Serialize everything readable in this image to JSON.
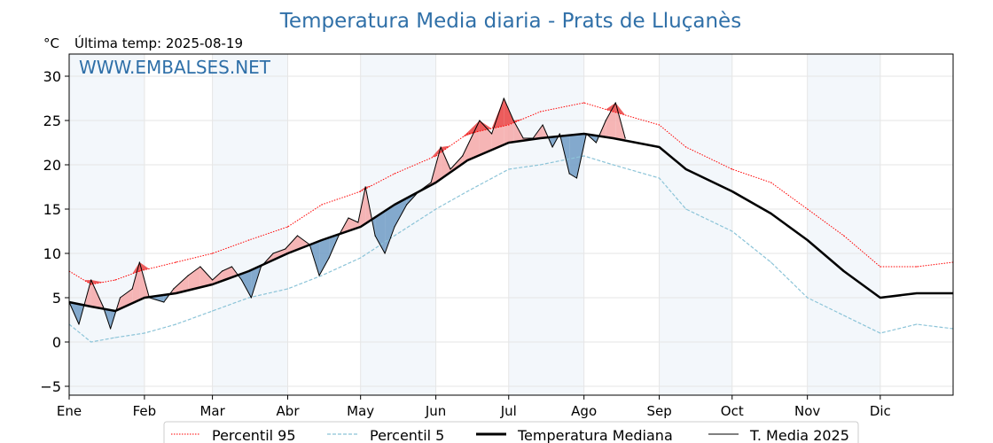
{
  "chart_data": {
    "type": "line",
    "title": "Temperatura Media diaria - Prats de Lluçanès",
    "unit": "°C",
    "last_temp_label": "Última temp: 2025-08-19",
    "watermark": "WWW.EMBALSES.NET",
    "xlim": [
      1,
      365
    ],
    "ylim": [
      -6,
      32.5
    ],
    "yticks": [
      -5,
      0,
      5,
      10,
      15,
      20,
      25,
      30
    ],
    "grid": true,
    "legend_position": "bottom-center",
    "months": [
      {
        "label": "Ene",
        "day": 1
      },
      {
        "label": "Feb",
        "day": 32
      },
      {
        "label": "Mar",
        "day": 60
      },
      {
        "label": "Abr",
        "day": 91
      },
      {
        "label": "May",
        "day": 121
      },
      {
        "label": "Jun",
        "day": 152
      },
      {
        "label": "Jul",
        "day": 182
      },
      {
        "label": "Ago",
        "day": 213
      },
      {
        "label": "Sep",
        "day": 244
      },
      {
        "label": "Oct",
        "day": 274
      },
      {
        "label": "Nov",
        "day": 305
      },
      {
        "label": "Dic",
        "day": 335
      }
    ],
    "shaded_months_days": [
      [
        1,
        32
      ],
      [
        60,
        91
      ],
      [
        121,
        152
      ],
      [
        182,
        213
      ],
      [
        244,
        274
      ],
      [
        305,
        335
      ]
    ],
    "series": [
      {
        "name": "Percentil 95",
        "color": "#ff0000",
        "style": "dotted",
        "points": [
          [
            1,
            8
          ],
          [
            10,
            6.5
          ],
          [
            20,
            7
          ],
          [
            30,
            8
          ],
          [
            45,
            9
          ],
          [
            60,
            10
          ],
          [
            75,
            11.5
          ],
          [
            91,
            13
          ],
          [
            105,
            15.5
          ],
          [
            121,
            17
          ],
          [
            135,
            19
          ],
          [
            152,
            21
          ],
          [
            165,
            23.5
          ],
          [
            182,
            24.5
          ],
          [
            195,
            26
          ],
          [
            213,
            27
          ],
          [
            225,
            26
          ],
          [
            244,
            24.5
          ],
          [
            255,
            22
          ],
          [
            274,
            19.5
          ],
          [
            290,
            18
          ],
          [
            305,
            15
          ],
          [
            320,
            12
          ],
          [
            335,
            8.5
          ],
          [
            350,
            8.5
          ],
          [
            365,
            9
          ]
        ]
      },
      {
        "name": "Percentil 5",
        "color": "#8cc4d8",
        "style": "dashed",
        "points": [
          [
            1,
            2
          ],
          [
            10,
            0
          ],
          [
            20,
            0.5
          ],
          [
            32,
            1
          ],
          [
            45,
            2
          ],
          [
            60,
            3.5
          ],
          [
            75,
            5
          ],
          [
            91,
            6
          ],
          [
            105,
            7.5
          ],
          [
            121,
            9.5
          ],
          [
            135,
            12
          ],
          [
            152,
            15
          ],
          [
            165,
            17
          ],
          [
            182,
            19.5
          ],
          [
            195,
            20
          ],
          [
            213,
            21
          ],
          [
            225,
            20
          ],
          [
            244,
            18.5
          ],
          [
            255,
            15
          ],
          [
            274,
            12.5
          ],
          [
            290,
            9
          ],
          [
            305,
            5
          ],
          [
            320,
            3
          ],
          [
            335,
            1
          ],
          [
            350,
            2
          ],
          [
            365,
            1.5
          ]
        ]
      },
      {
        "name": "Temperatura Mediana",
        "color": "#000000",
        "style": "thick",
        "points": [
          [
            1,
            4.5
          ],
          [
            10,
            4
          ],
          [
            20,
            3.5
          ],
          [
            32,
            5
          ],
          [
            45,
            5.5
          ],
          [
            60,
            6.5
          ],
          [
            75,
            8
          ],
          [
            91,
            10
          ],
          [
            105,
            11.5
          ],
          [
            121,
            13
          ],
          [
            135,
            15.5
          ],
          [
            152,
            18
          ],
          [
            165,
            20.5
          ],
          [
            182,
            22.5
          ],
          [
            195,
            23
          ],
          [
            213,
            23.5
          ],
          [
            225,
            23
          ],
          [
            244,
            22
          ],
          [
            255,
            19.5
          ],
          [
            274,
            17
          ],
          [
            290,
            14.5
          ],
          [
            305,
            11.5
          ],
          [
            320,
            8
          ],
          [
            335,
            5
          ],
          [
            350,
            5.5
          ],
          [
            365,
            5.5
          ]
        ]
      },
      {
        "name": "T. Media 2025",
        "color": "#000000",
        "style": "thin",
        "points": [
          [
            1,
            4.5
          ],
          [
            5,
            2
          ],
          [
            10,
            7
          ],
          [
            15,
            4
          ],
          [
            18,
            1.5
          ],
          [
            22,
            5
          ],
          [
            27,
            6
          ],
          [
            30,
            9
          ],
          [
            34,
            5
          ],
          [
            40,
            4.5
          ],
          [
            44,
            6
          ],
          [
            50,
            7.5
          ],
          [
            55,
            8.5
          ],
          [
            60,
            7
          ],
          [
            64,
            8
          ],
          [
            68,
            8.5
          ],
          [
            72,
            7
          ],
          [
            76,
            5
          ],
          [
            80,
            8.5
          ],
          [
            85,
            10
          ],
          [
            90,
            10.5
          ],
          [
            95,
            12
          ],
          [
            100,
            11
          ],
          [
            104,
            7.5
          ],
          [
            108,
            9.5
          ],
          [
            112,
            12
          ],
          [
            116,
            14
          ],
          [
            120,
            13.5
          ],
          [
            123,
            17.5
          ],
          [
            127,
            12
          ],
          [
            131,
            10
          ],
          [
            135,
            13
          ],
          [
            140,
            15.5
          ],
          [
            145,
            17
          ],
          [
            150,
            18
          ],
          [
            154,
            22
          ],
          [
            158,
            19.5
          ],
          [
            163,
            21
          ],
          [
            170,
            25
          ],
          [
            175,
            23.5
          ],
          [
            180,
            27.5
          ],
          [
            184,
            25
          ],
          [
            188,
            23
          ],
          [
            192,
            23
          ],
          [
            196,
            24.5
          ],
          [
            200,
            22
          ],
          [
            203,
            23.5
          ],
          [
            207,
            19
          ],
          [
            210,
            18.5
          ],
          [
            214,
            23.5
          ],
          [
            218,
            22.5
          ],
          [
            222,
            25
          ],
          [
            226,
            27
          ],
          [
            230,
            23
          ]
        ]
      }
    ]
  },
  "legend": [
    {
      "label": "Percentil 95",
      "key": "p95"
    },
    {
      "label": "Percentil 5",
      "key": "p5"
    },
    {
      "label": "Temperatura Mediana",
      "key": "median"
    },
    {
      "label": "T. Media 2025",
      "key": "t2025"
    }
  ]
}
